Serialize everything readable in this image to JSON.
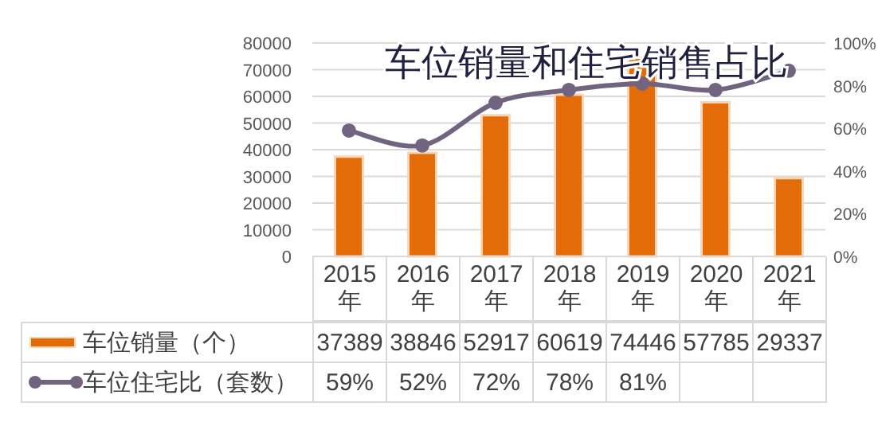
{
  "chart_data": {
    "type": "bar",
    "title": "车位销量和住宅销售占比",
    "categories": [
      "2015年",
      "2016年",
      "2017年",
      "2018年",
      "2019年",
      "2020年",
      "2021年"
    ],
    "series": [
      {
        "name": "车位销量（个）",
        "color": "#e36c09",
        "values": [
          37389,
          38846,
          52917,
          60619,
          74446,
          57785,
          29337
        ],
        "value_labels": [
          "37389",
          "38846",
          "52917",
          "60619",
          "74446",
          "57785",
          "29337"
        ]
      },
      {
        "name": "车位住宅比（套数）",
        "type": "line",
        "axis": "y2",
        "color": "#726480",
        "marker": "circle",
        "values": [
          59,
          52,
          72,
          78,
          81,
          78,
          87
        ],
        "value_labels": [
          "59%",
          "52%",
          "72%",
          "78%",
          "81%",
          null,
          null
        ]
      }
    ],
    "ylim": [
      0,
      80000
    ],
    "yticks": [
      0,
      10000,
      20000,
      30000,
      40000,
      50000,
      60000,
      70000,
      80000
    ],
    "y2lim": [
      0,
      100
    ],
    "y2ticks": [
      {
        "value": 0,
        "label": "0%"
      },
      {
        "value": 20,
        "label": "20%"
      },
      {
        "value": 40,
        "label": "40%"
      },
      {
        "value": 60,
        "label": "60%"
      },
      {
        "value": 80,
        "label": "80%"
      },
      {
        "value": 100,
        "label": "100%"
      }
    ],
    "grid": "y",
    "legend": "bottom"
  }
}
